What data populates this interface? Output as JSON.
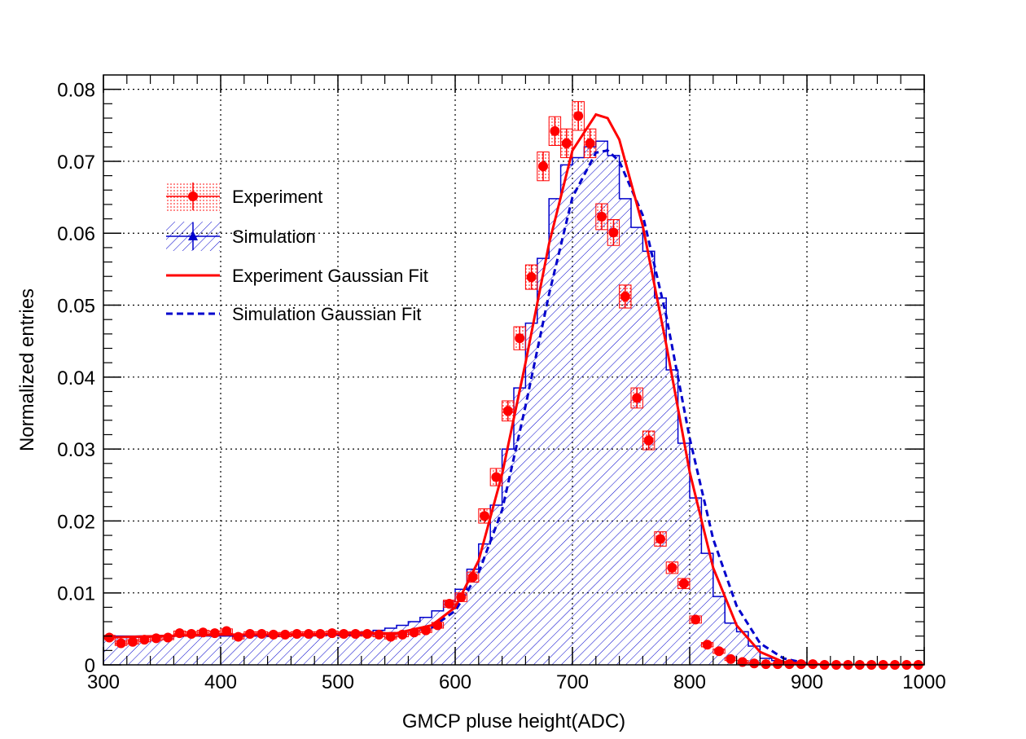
{
  "chart_data": {
    "type": "histogram",
    "xlabel": "GMCP pluse height(ADC)",
    "ylabel": "Normalized entries",
    "xlim": [
      300,
      1000
    ],
    "ylim": [
      0,
      0.082
    ],
    "bin_width": 10,
    "grid": true,
    "legend_position": "upper-left",
    "xticks": [
      "300",
      "400",
      "500",
      "600",
      "700",
      "800",
      "900",
      "1000"
    ],
    "yticks": [
      "0",
      "0.01",
      "0.02",
      "0.03",
      "0.04",
      "0.05",
      "0.06",
      "0.07",
      "0.08"
    ],
    "colors": {
      "experiment": "#ff0000",
      "simulation": "#0000cc"
    },
    "legend": [
      {
        "label": "Experiment",
        "style": "red-dotted-band-with-marker"
      },
      {
        "label": "Simulation",
        "style": "blue-hatched-with-triangle"
      },
      {
        "label": "Experiment Gaussian Fit",
        "style": "red-solid-line"
      },
      {
        "label": "Simulation Gaussian Fit",
        "style": "blue-dashed-line"
      }
    ],
    "series": [
      {
        "name": "Experiment",
        "kind": "points_with_errors",
        "x": [
          305,
          315,
          325,
          335,
          345,
          355,
          365,
          375,
          385,
          395,
          405,
          415,
          425,
          435,
          445,
          455,
          465,
          475,
          485,
          495,
          505,
          515,
          525,
          535,
          545,
          555,
          565,
          575,
          585,
          595,
          605,
          615,
          625,
          635,
          645,
          655,
          665,
          675,
          685,
          695,
          705,
          715,
          725,
          735,
          745,
          755,
          765,
          775,
          785,
          795,
          805,
          815,
          825,
          835,
          845,
          855,
          865,
          875,
          885,
          895,
          905,
          915,
          925,
          935,
          945,
          955,
          965,
          975,
          985,
          995
        ],
        "y": [
          0.0038,
          0.003,
          0.0032,
          0.0035,
          0.0037,
          0.0038,
          0.0044,
          0.0043,
          0.0045,
          0.0044,
          0.0047,
          0.0039,
          0.0043,
          0.0043,
          0.0042,
          0.0042,
          0.0043,
          0.0043,
          0.0043,
          0.0044,
          0.0043,
          0.0043,
          0.0043,
          0.0042,
          0.0039,
          0.0042,
          0.0045,
          0.0048,
          0.0055,
          0.0085,
          0.0094,
          0.0122,
          0.0207,
          0.0261,
          0.0353,
          0.0454,
          0.0539,
          0.0693,
          0.0742,
          0.0725,
          0.0763,
          0.0725,
          0.0623,
          0.0601,
          0.0512,
          0.0371,
          0.0312,
          0.0175,
          0.0135,
          0.0113,
          0.0063,
          0.0028,
          0.0019,
          0.0008,
          0.0004,
          0.0002,
          0.0001,
          0.0001,
          0.0001,
          0.0001,
          0.0001,
          0.0,
          0.0,
          0.0,
          0.0,
          0.0,
          0.0,
          0.0,
          0.0,
          0.0
        ],
        "err": [
          0.0003,
          0.0003,
          0.0003,
          0.0003,
          0.0003,
          0.0003,
          0.0003,
          0.0003,
          0.0003,
          0.0003,
          0.0003,
          0.0003,
          0.0003,
          0.0003,
          0.0003,
          0.0003,
          0.0003,
          0.0003,
          0.0003,
          0.0003,
          0.0003,
          0.0003,
          0.0003,
          0.0003,
          0.0003,
          0.0003,
          0.0003,
          0.0003,
          0.0004,
          0.0005,
          0.0006,
          0.0007,
          0.001,
          0.0012,
          0.0014,
          0.0016,
          0.0017,
          0.002,
          0.002,
          0.002,
          0.002,
          0.002,
          0.0018,
          0.0018,
          0.0016,
          0.0014,
          0.0013,
          0.001,
          0.0008,
          0.0007,
          0.0005,
          0.0003,
          0.0003,
          0.0002,
          0.0002,
          0.0001,
          0.0001,
          0.0001,
          0.0001,
          0.0001,
          0.0001,
          0.0,
          0.0,
          0.0,
          0.0,
          0.0,
          0.0,
          0.0,
          0.0,
          0.0
        ]
      },
      {
        "name": "Simulation",
        "kind": "histogram_hatched",
        "x": [
          305,
          315,
          325,
          335,
          345,
          355,
          365,
          375,
          385,
          395,
          405,
          415,
          425,
          435,
          445,
          455,
          465,
          475,
          485,
          495,
          505,
          515,
          525,
          535,
          545,
          555,
          565,
          575,
          585,
          595,
          605,
          615,
          625,
          635,
          645,
          655,
          665,
          675,
          685,
          695,
          705,
          715,
          725,
          735,
          745,
          755,
          765,
          775,
          785,
          795,
          805,
          815,
          825,
          835,
          845,
          855,
          865,
          875,
          885,
          895,
          905,
          915,
          925,
          935,
          945,
          955,
          965,
          975,
          985,
          995
        ],
        "y": [
          0.004,
          0.004,
          0.004,
          0.004,
          0.004,
          0.004,
          0.004,
          0.004,
          0.004,
          0.004,
          0.004,
          0.004,
          0.004,
          0.0041,
          0.0041,
          0.0041,
          0.0041,
          0.0042,
          0.0042,
          0.0043,
          0.0044,
          0.0045,
          0.0046,
          0.0048,
          0.0051,
          0.0055,
          0.006,
          0.0066,
          0.0075,
          0.0088,
          0.0105,
          0.0133,
          0.0168,
          0.0222,
          0.03,
          0.0385,
          0.0475,
          0.0565,
          0.0648,
          0.0695,
          0.0705,
          0.072,
          0.0728,
          0.0708,
          0.0648,
          0.0608,
          0.0575,
          0.051,
          0.041,
          0.0308,
          0.0232,
          0.0155,
          0.0095,
          0.0058,
          0.0046,
          0.0026,
          0.0009,
          0.0006,
          0.0003,
          0.0002,
          0.0001,
          0.0001,
          0.0001,
          0.0,
          0.0,
          0.0,
          0.0,
          0.0,
          0.0,
          0.0
        ]
      },
      {
        "name": "Experiment Gaussian Fit",
        "kind": "fit_curve",
        "x": [
          300,
          350,
          400,
          450,
          500,
          550,
          580,
          600,
          620,
          640,
          660,
          680,
          700,
          720,
          730,
          740,
          760,
          780,
          800,
          820,
          840,
          860,
          880,
          900,
          920
        ],
        "y": [
          0.0038,
          0.004,
          0.0042,
          0.0042,
          0.0043,
          0.0044,
          0.0055,
          0.008,
          0.0145,
          0.0265,
          0.042,
          0.0585,
          0.0715,
          0.0765,
          0.076,
          0.073,
          0.061,
          0.0445,
          0.0268,
          0.0135,
          0.0055,
          0.0018,
          0.0004,
          0.0001,
          0.0
        ]
      },
      {
        "name": "Simulation Gaussian Fit",
        "kind": "fit_curve",
        "x": [
          300,
          350,
          400,
          450,
          500,
          550,
          580,
          600,
          620,
          640,
          660,
          680,
          700,
          720,
          730,
          740,
          760,
          780,
          800,
          820,
          840,
          860,
          880,
          900,
          920
        ],
        "y": [
          0.0038,
          0.004,
          0.0041,
          0.0041,
          0.0042,
          0.0044,
          0.0052,
          0.0075,
          0.0128,
          0.0215,
          0.036,
          0.0515,
          0.065,
          0.0712,
          0.0715,
          0.07,
          0.0625,
          0.0485,
          0.0315,
          0.0175,
          0.0082,
          0.003,
          0.0009,
          0.0002,
          0.0
        ]
      }
    ]
  }
}
